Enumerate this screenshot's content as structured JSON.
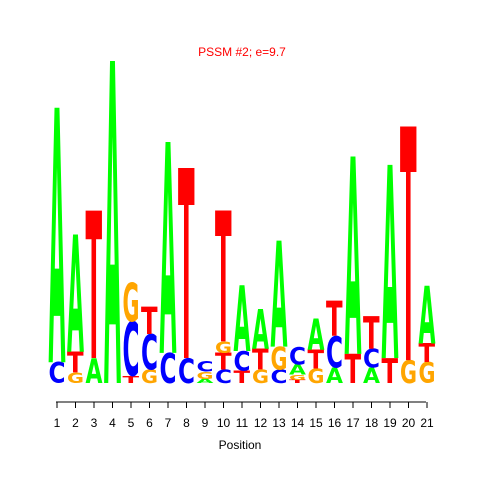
{
  "chart_data": {
    "type": "sequence-logo",
    "title": "PSSM #2; e=9.7",
    "xlabel": "Position",
    "ylabel": "",
    "colors": {
      "A": "#00ff00",
      "C": "#0000ff",
      "G": "#ffa500",
      "T": "#ff0000"
    },
    "positions": [
      "1",
      "2",
      "3",
      "4",
      "5",
      "6",
      "7",
      "8",
      "9",
      "10",
      "11",
      "12",
      "13",
      "14",
      "15",
      "16",
      "17",
      "18",
      "19",
      "20",
      "21"
    ],
    "stacks": [
      [
        {
          "base": "C",
          "height": 0.2
        },
        {
          "base": "A",
          "height": 2.45
        }
      ],
      [
        {
          "base": "G",
          "height": 0.1
        },
        {
          "base": "T",
          "height": 0.2
        },
        {
          "base": "A",
          "height": 1.13
        }
      ],
      [
        {
          "base": "A",
          "height": 0.24
        },
        {
          "base": "T",
          "height": 1.42
        }
      ],
      [
        {
          "base": "A",
          "height": 3.1
        }
      ],
      [
        {
          "base": "T",
          "height": 0.07
        },
        {
          "base": "C",
          "height": 0.52
        },
        {
          "base": "G",
          "height": 0.37
        }
      ],
      [
        {
          "base": "G",
          "height": 0.13
        },
        {
          "base": "C",
          "height": 0.34
        },
        {
          "base": "T",
          "height": 0.26
        }
      ],
      [
        {
          "base": "C",
          "height": 0.29
        },
        {
          "base": "A",
          "height": 2.03
        }
      ],
      [
        {
          "base": "C",
          "height": 0.24
        },
        {
          "base": "T",
          "height": 1.83
        }
      ],
      [
        {
          "base": "A",
          "height": 0.04
        },
        {
          "base": "G",
          "height": 0.07
        },
        {
          "base": "C",
          "height": 0.1
        }
      ],
      [
        {
          "base": "C",
          "height": 0.13
        },
        {
          "base": "T",
          "height": 0.16
        },
        {
          "base": "G",
          "height": 0.11
        },
        {
          "base": "T",
          "height": 1.26
        }
      ],
      [
        {
          "base": "T",
          "height": 0.12
        },
        {
          "base": "C",
          "height": 0.19
        },
        {
          "base": "A",
          "height": 0.63
        }
      ],
      [
        {
          "base": "G",
          "height": 0.13
        },
        {
          "base": "T",
          "height": 0.2
        },
        {
          "base": "A",
          "height": 0.38
        }
      ],
      [
        {
          "base": "C",
          "height": 0.13
        },
        {
          "base": "G",
          "height": 0.22
        },
        {
          "base": "A",
          "height": 1.02
        }
      ],
      [
        {
          "base": "T",
          "height": 0.03
        },
        {
          "base": "G",
          "height": 0.05
        },
        {
          "base": "A",
          "height": 0.1
        },
        {
          "base": "C",
          "height": 0.17
        }
      ],
      [
        {
          "base": "G",
          "height": 0.14
        },
        {
          "base": "T",
          "height": 0.18
        },
        {
          "base": "A",
          "height": 0.3
        }
      ],
      [
        {
          "base": "A",
          "height": 0.15
        },
        {
          "base": "C",
          "height": 0.3
        },
        {
          "base": "T",
          "height": 0.34
        }
      ],
      [
        {
          "base": "T",
          "height": 0.28
        },
        {
          "base": "A",
          "height": 1.9
        }
      ],
      [
        {
          "base": "A",
          "height": 0.15
        },
        {
          "base": "C",
          "height": 0.18
        },
        {
          "base": "T",
          "height": 0.31
        }
      ],
      [
        {
          "base": "T",
          "height": 0.24
        },
        {
          "base": "A",
          "height": 1.86
        }
      ],
      [
        {
          "base": "G",
          "height": 0.22
        },
        {
          "base": "T",
          "height": 2.25
        }
      ],
      [
        {
          "base": "G",
          "height": 0.2
        },
        {
          "base": "T",
          "height": 0.18
        },
        {
          "base": "A",
          "height": 0.56
        }
      ]
    ]
  }
}
